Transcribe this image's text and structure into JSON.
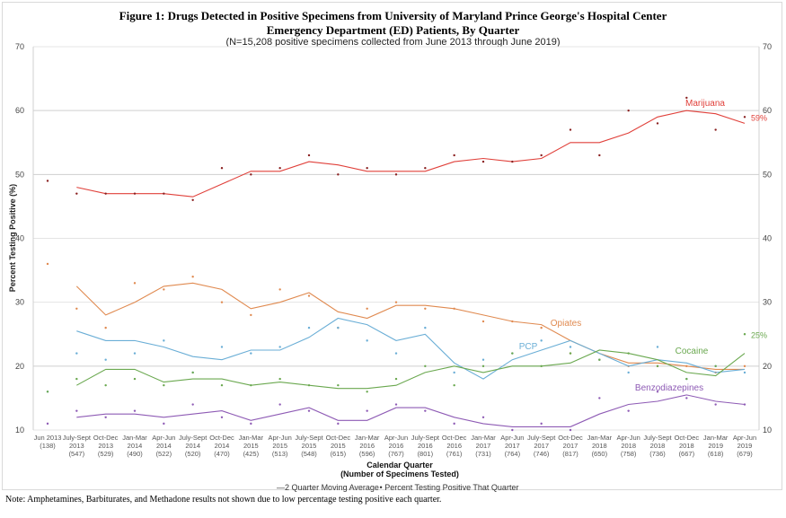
{
  "chart_data": {
    "type": "line",
    "title": "Figure 1: Drugs Detected in Positive Specimens from University of Maryland Prince George's Hospital Center",
    "title_line2": "Emergency Department (ED) Patients, By Quarter",
    "subtitle": "(N=15,208 positive specimens collected from June 2013 through June 2019)",
    "xlabel": "Calendar Quarter",
    "xlabel2": "(Number of Specimens Tested)",
    "ylabel": "Percent Testing Positive (%)",
    "ylim": [
      10,
      70
    ],
    "yticks": [
      10,
      20,
      30,
      40,
      50,
      60,
      70
    ],
    "grid": true,
    "legend_position": "bottom",
    "legend": [
      "—2 Quarter Moving Average",
      "• Percent Testing Positive That Quarter"
    ],
    "note": "Note: Amphetamines, Barbiturates, and Methadone results not shown due to low percentage testing positive each quarter.",
    "categories": [
      {
        "q": "Jun 2013",
        "y": "",
        "n": "(138)"
      },
      {
        "q": "July-Sept",
        "y": "2013",
        "n": "(547)"
      },
      {
        "q": "Oct-Dec",
        "y": "2013",
        "n": "(529)"
      },
      {
        "q": "Jan-Mar",
        "y": "2014",
        "n": "(490)"
      },
      {
        "q": "Apr-Jun",
        "y": "2014",
        "n": "(522)"
      },
      {
        "q": "July-Sept",
        "y": "2014",
        "n": "(520)"
      },
      {
        "q": "Oct-Dec",
        "y": "2014",
        "n": "(470)"
      },
      {
        "q": "Jan-Mar",
        "y": "2015",
        "n": "(425)"
      },
      {
        "q": "Apr-Jun",
        "y": "2015",
        "n": "(513)"
      },
      {
        "q": "July-Sept",
        "y": "2015",
        "n": "(548)"
      },
      {
        "q": "Oct-Dec",
        "y": "2015",
        "n": "(615)"
      },
      {
        "q": "Jan-Mar",
        "y": "2016",
        "n": "(596)"
      },
      {
        "q": "Apr-Jun",
        "y": "2016",
        "n": "(767)"
      },
      {
        "q": "July-Sept",
        "y": "2016",
        "n": "(801)"
      },
      {
        "q": "Oct-Dec",
        "y": "2016",
        "n": "(761)"
      },
      {
        "q": "Jan-Mar",
        "y": "2017",
        "n": "(731)"
      },
      {
        "q": "Apr-Jun",
        "y": "2017",
        "n": "(764)"
      },
      {
        "q": "July-Sept",
        "y": "2017",
        "n": "(746)"
      },
      {
        "q": "Oct-Dec",
        "y": "2017",
        "n": "(817)"
      },
      {
        "q": "Jan-Mar",
        "y": "2018",
        "n": "(650)"
      },
      {
        "q": "Apr-Jun",
        "y": "2018",
        "n": "(758)"
      },
      {
        "q": "July-Sept",
        "y": "2018",
        "n": "(736)"
      },
      {
        "q": "Oct-Dec",
        "y": "2018",
        "n": "(667)"
      },
      {
        "q": "Jan-Mar",
        "y": "2019",
        "n": "(618)"
      },
      {
        "q": "Apr-Jun",
        "y": "2019",
        "n": "(679)"
      }
    ],
    "series": [
      {
        "name": "Marijuana",
        "color": "#e0403a",
        "end_label": "59%",
        "points": [
          49,
          47,
          47,
          47,
          47,
          46,
          51,
          50,
          51,
          53,
          50,
          51,
          50,
          51,
          53,
          52,
          52,
          53,
          57,
          53,
          60,
          58,
          62,
          57,
          59
        ],
        "moving_avg": [
          null,
          48,
          47,
          47,
          47,
          46.5,
          48.5,
          50.5,
          50.5,
          52,
          51.5,
          50.5,
          50.5,
          50.5,
          52,
          52.5,
          52,
          52.5,
          55,
          55,
          56.5,
          59,
          60,
          59.5,
          58
        ]
      },
      {
        "name": "Opiates",
        "color": "#e08a50",
        "end_label": "",
        "points": [
          36,
          29,
          26,
          33,
          32,
          34,
          30,
          28,
          32,
          31,
          26,
          29,
          30,
          29,
          29,
          27,
          27,
          26,
          22,
          21,
          20,
          20,
          20,
          19,
          20
        ],
        "moving_avg": [
          null,
          32.5,
          28,
          30,
          32.5,
          33,
          32,
          29,
          30,
          31.5,
          28.5,
          27.5,
          29.5,
          29.5,
          29,
          28,
          27,
          26.5,
          24,
          22,
          20.5,
          20.5,
          20,
          19.5,
          19.5
        ]
      },
      {
        "name": "PCP",
        "color": "#6aaed6",
        "end_label": "",
        "points": [
          16,
          22,
          21,
          22,
          24,
          19,
          23,
          22,
          23,
          26,
          26,
          24,
          22,
          26,
          19,
          21,
          22,
          24,
          23,
          21,
          19,
          23,
          18,
          20,
          19
        ],
        "moving_avg": [
          null,
          25.5,
          24,
          24,
          23,
          21.5,
          21,
          22.5,
          22.5,
          24.5,
          27.5,
          26.5,
          24,
          25,
          20.5,
          18,
          21,
          22.5,
          24,
          22,
          20,
          21,
          20.5,
          19,
          19.5
        ]
      },
      {
        "name": "Cocaine",
        "color": "#6aa84f",
        "end_label": "25%",
        "points": [
          16,
          18,
          17,
          18,
          17,
          19,
          17,
          17,
          18,
          17,
          17,
          16,
          18,
          20,
          17,
          20,
          22,
          20,
          22,
          21,
          22,
          20,
          18,
          20,
          25
        ],
        "moving_avg": [
          null,
          17,
          19.5,
          19.5,
          17.5,
          18,
          18,
          17,
          17.5,
          17,
          16.5,
          16.5,
          17,
          19,
          20,
          19,
          20,
          20,
          20.5,
          22.5,
          22,
          21,
          19,
          18.5,
          22
        ]
      },
      {
        "name": "Benzodiazepines",
        "color": "#8e5bb5",
        "end_label": "",
        "points": [
          11,
          13,
          12,
          13,
          11,
          14,
          12,
          11,
          14,
          13,
          11,
          13,
          14,
          13,
          11,
          12,
          10,
          11,
          10,
          15,
          13,
          16,
          15,
          14,
          14
        ],
        "moving_avg": [
          null,
          12,
          12.5,
          12.5,
          12,
          12.5,
          13,
          11.5,
          12.5,
          13.5,
          11.5,
          11.5,
          13.5,
          13.5,
          12,
          11,
          10.5,
          10.5,
          10.5,
          12.5,
          14,
          14.5,
          15.5,
          14.5,
          14
        ]
      }
    ]
  }
}
